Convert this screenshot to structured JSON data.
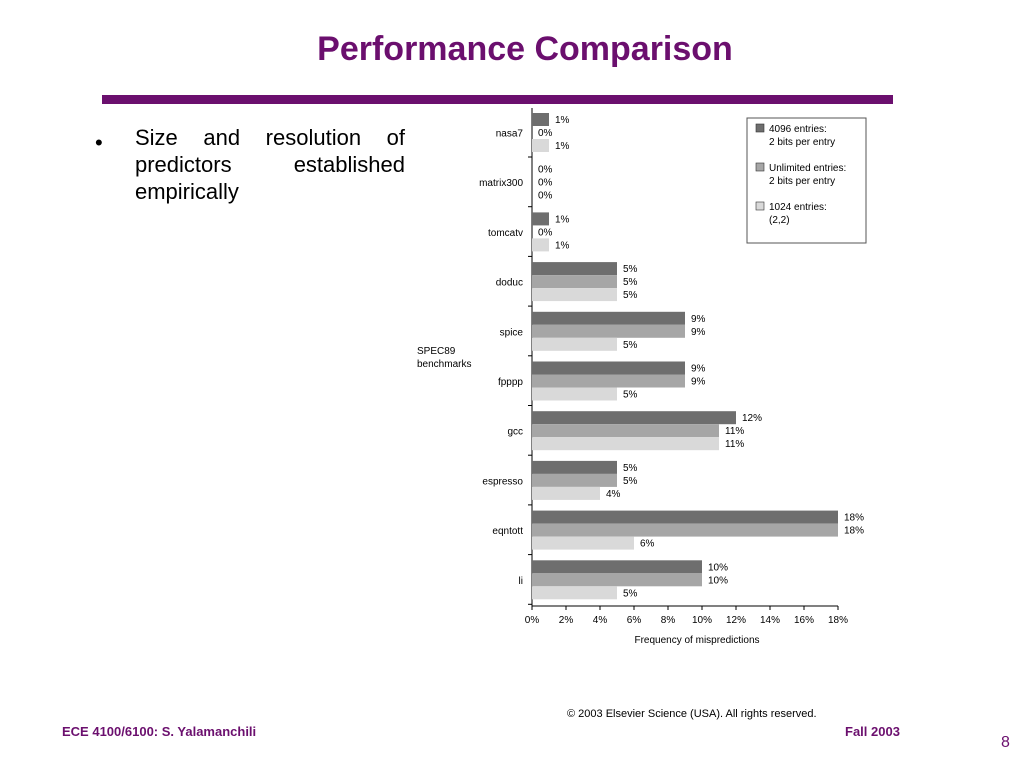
{
  "slide": {
    "title": "Performance Comparison",
    "bullet": "Size and resolution of predictors established empirically",
    "footer_left": "ECE 4100/6100: S. Yalamanchili",
    "footer_right": "Fall 2003",
    "page_number": "8",
    "copyright": "© 2003 Elsevier Science (USA). All rights reserved."
  },
  "colors": {
    "title": "#6b0f6e",
    "series": [
      "#6e6e6e",
      "#a6a6a6",
      "#d9d9d9"
    ]
  },
  "chart_data": {
    "type": "bar",
    "orientation": "horizontal",
    "ylabel": "SPEC89 benchmarks",
    "xlabel": "Frequency of mispredictions",
    "xlim": [
      0,
      18
    ],
    "xticks": [
      "0%",
      "2%",
      "4%",
      "6%",
      "8%",
      "10%",
      "12%",
      "14%",
      "16%",
      "18%"
    ],
    "categories": [
      "nasa7",
      "matrix300",
      "tomcatv",
      "doduc",
      "spice",
      "fpppp",
      "gcc",
      "espresso",
      "eqntott",
      "li"
    ],
    "series": [
      {
        "name": "4096 entries: 2 bits per entry",
        "values": [
          1,
          0,
          1,
          5,
          9,
          9,
          12,
          5,
          18,
          10
        ]
      },
      {
        "name": "Unlimited entries: 2 bits per entry",
        "values": [
          0,
          0,
          0,
          5,
          9,
          9,
          11,
          5,
          18,
          10
        ]
      },
      {
        "name": "1024 entries: (2,2)",
        "values": [
          1,
          0,
          1,
          5,
          5,
          5,
          11,
          4,
          6,
          5
        ]
      }
    ],
    "legend_position": "top-right",
    "grid": false
  }
}
